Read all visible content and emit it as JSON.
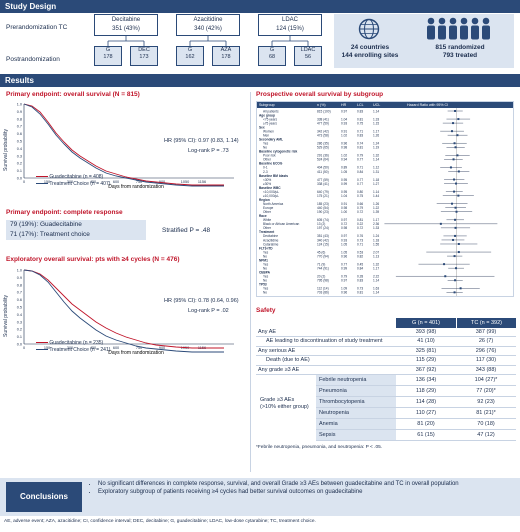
{
  "study_design": {
    "header": "Study Design",
    "prerand_label": "Prerandomization TC",
    "postrand_label": "Postrandomization",
    "arms": [
      {
        "name": "Decitabine",
        "n": "351 (43%)",
        "g": "G",
        "g_n": "178",
        "tc": "DEC",
        "tc_n": "173"
      },
      {
        "name": "Azacitidine",
        "n": "340 (42%)",
        "g": "G",
        "g_n": "162",
        "tc": "AZA",
        "tc_n": "178"
      },
      {
        "name": "LDAC",
        "n": "124 (15%)",
        "g": "G",
        "g_n": "68",
        "tc": "LDAC",
        "tc_n": "56"
      }
    ],
    "sites_line1": "24 countries",
    "sites_line2": "144 enrolling sites",
    "rand_line1": "815 randomized",
    "rand_line2": "793 treated",
    "icons": [
      "globe-icon",
      "people-group-icon"
    ]
  },
  "results": {
    "header": "Results",
    "os_title": "Primary endpoint: overall survival (N = 815)",
    "os_hr": "HR (95% CI): 0.97 (0.83, 1.14)",
    "os_p": "Log-rank P = .73",
    "os_legend": [
      "Guadecitabine (n = 408)",
      "Treatment Choice (n = 407)"
    ],
    "km_ylabel": "Survival probability",
    "km_xlabel": "Days from randomization",
    "km_xticks": [
      "0",
      "150",
      "300",
      "450",
      "600",
      "750",
      "900",
      "1050",
      "1156"
    ],
    "km_yticks": [
      "0.0",
      "0.1",
      "0.2",
      "0.3",
      "0.4",
      "0.5",
      "0.6",
      "0.7",
      "0.8",
      "0.9",
      "1.0"
    ],
    "cr_title": "Primary endpoint: complete response",
    "cr_rows": [
      "79 (19%): Guadecitabine",
      "71 (17%): Treatment choice"
    ],
    "cr_stat": "Stratified P = .48",
    "exp_title": "Exploratory overall survival: pts with ≥4 cycles (N = 476)",
    "exp_hr": "HR (95% CI): 0.78 (0.64, 0.96)",
    "exp_p": "Log-rank P = .02",
    "exp_legend": [
      "Guadecitabine (n = 235)",
      "Treatment Choice (n = 241)"
    ],
    "forest_title": "Prospective overall survival by subgroup",
    "forest_headers": [
      "Subgroup",
      "n (%)",
      "HR",
      "LCL",
      "UCL",
      "Hazard Ratio with 95% CI"
    ],
    "forest_rows": [
      [
        "All patients",
        "815 (100)",
        "0.97",
        "0.83",
        "1.14"
      ],
      [
        "Age group",
        "",
        "",
        "",
        ""
      ],
      [
        "<75 years",
        "338 (41)",
        "1.04",
        "0.81",
        "1.33"
      ],
      [
        "≥75 years",
        "477 (59)",
        "0.93",
        "0.75",
        "1.15"
      ],
      [
        "Sex",
        "",
        "",
        "",
        ""
      ],
      [
        "Women",
        "342 (42)",
        "0.91",
        "0.71",
        "1.17"
      ],
      [
        "Men",
        "473 (58)",
        "1.02",
        "0.83",
        "1.26"
      ],
      [
        "Secondary AML",
        "",
        "",
        "",
        ""
      ],
      [
        "Yes",
        "286 (35)",
        "0.96",
        "0.74",
        "1.24"
      ],
      [
        "No",
        "529 (65)",
        "0.98",
        "0.81",
        "1.19"
      ],
      [
        "Baseline cytogenetic risk",
        "",
        "",
        "",
        ""
      ],
      [
        "Poor risk",
        "291 (36)",
        "1.02",
        "0.79",
        "1.32"
      ],
      [
        "Other",
        "524 (64)",
        "0.94",
        "0.77",
        "1.14"
      ],
      [
        "Baseline ECOG",
        "",
        "",
        "",
        ""
      ],
      [
        "0-1",
        "404 (50)",
        "0.89",
        "0.71",
        "1.12"
      ],
      [
        "2-3",
        "411 (50)",
        "1.05",
        "0.84",
        "1.31"
      ],
      [
        "Baseline BM blasts",
        "",
        "",
        "",
        ""
      ],
      [
        "<30%",
        "477 (59)",
        "0.95",
        "0.77",
        "1.18"
      ],
      [
        "≥30%",
        "338 (41)",
        "0.99",
        "0.77",
        "1.27"
      ],
      [
        "Baseline WBC",
        "",
        "",
        "",
        ""
      ],
      [
        "<10,000/µL",
        "640 (79)",
        "0.95",
        "0.80",
        "1.14"
      ],
      [
        "≥10,000/µL",
        "175 (21)",
        "1.04",
        "0.75",
        "1.44"
      ],
      [
        "Region",
        "",
        "",
        "",
        ""
      ],
      [
        "North America",
        "185 (23)",
        "0.91",
        "0.66",
        "1.26"
      ],
      [
        "Europe",
        "440 (54)",
        "0.98",
        "0.79",
        "1.22"
      ],
      [
        "Other",
        "190 (23)",
        "1.00",
        "0.72",
        "1.39"
      ],
      [
        "Race",
        "",
        "",
        "",
        ""
      ],
      [
        "White",
        "605 (74)",
        "0.97",
        "0.81",
        "1.17"
      ],
      [
        "Black or African American",
        "13 (2)",
        "0.72",
        "0.22",
        "2.36"
      ],
      [
        "Other",
        "197 (24)",
        "0.98",
        "0.72",
        "1.33"
      ],
      [
        "Treatment",
        "",
        "",
        "",
        ""
      ],
      [
        "Decitabine",
        "351 (43)",
        "0.97",
        "0.76",
        "1.24"
      ],
      [
        "Azacitidine",
        "340 (42)",
        "0.93",
        "0.73",
        "1.18"
      ],
      [
        "Cytarabine",
        "124 (15)",
        "1.05",
        "0.71",
        "1.55"
      ],
      [
        "FLT3-ITD",
        "",
        "",
        "",
        ""
      ],
      [
        "Yes",
        "45 (6)",
        "1.05",
        "0.53",
        "2.07"
      ],
      [
        "No",
        "770 (94)",
        "0.96",
        "0.82",
        "1.13"
      ],
      [
        "NPM1",
        "",
        "",
        "",
        ""
      ],
      [
        "Yes",
        "71 (9)",
        "0.77",
        "0.45",
        "1.32"
      ],
      [
        "No",
        "744 (91)",
        "0.99",
        "0.84",
        "1.17"
      ],
      [
        "CEBPA",
        "",
        "",
        "",
        ""
      ],
      [
        "Yes",
        "20 (2)",
        "0.79",
        "0.28",
        "2.22"
      ],
      [
        "No",
        "795 (98)",
        "0.97",
        "0.83",
        "1.14"
      ],
      [
        "TP53",
        "",
        "",
        "",
        ""
      ],
      [
        "Yes",
        "112 (14)",
        "1.09",
        "0.73",
        "1.63"
      ],
      [
        "No",
        "703 (86)",
        "0.96",
        "0.81",
        "1.14"
      ]
    ],
    "safety_title": "Safety",
    "safety_cols": [
      "",
      "G (n = 401)",
      "TC (n = 392)"
    ],
    "safety_rows": [
      {
        "label": "Any AE",
        "g": "393 (98)",
        "tc": "387 (99)"
      },
      {
        "label": "AE leading to discontinuation of study treatment",
        "g": "41 (10)",
        "tc": "26 (7)"
      },
      {
        "label": "Any serious AE",
        "g": "325 (81)",
        "tc": "296 (76)"
      },
      {
        "label": "Death (due to AE)",
        "g": "115 (29)",
        "tc": "117 (30)"
      },
      {
        "label": "Any grade ≥3 AE",
        "g": "367 (92)",
        "tc": "343 (88)"
      }
    ],
    "grade3_label_1": "Grade ≥3 AEs",
    "grade3_label_2": "(>10% either group)",
    "grade3_rows": [
      {
        "label": "Febrile neutropenia",
        "g": "136 (34)",
        "tc": "104 (27)*"
      },
      {
        "label": "Pneumonia",
        "g": "118 (29)",
        "tc": "77 (20)*"
      },
      {
        "label": "Thrombocytopenia",
        "g": "114 (28)",
        "tc": "92 (23)"
      },
      {
        "label": "Neutropenia",
        "g": "110 (27)",
        "tc": "81 (21)*"
      },
      {
        "label": "Anemia",
        "g": "81 (20)",
        "tc": "70 (18)"
      },
      {
        "label": "Sepsis",
        "g": "61 (15)",
        "tc": "47 (12)"
      }
    ],
    "safety_footnote": "*Febrile neutropenia, pneumonia, and neutropenia: P < .05."
  },
  "conclusions": {
    "label": "Conclusions",
    "bullets": [
      "No significant differences in complete response, survival, and overall Grade ≥3 AEs between guadecitabine and TC in overall population",
      "Exploratory subgroup of patients receiving ≥4 cycles had better survival outcomes on guadecitabine"
    ]
  },
  "footer": "AE, adverse event; AZA, azacitidine; CI, confidence interval; DEC, decitabine; G, guadecitabine; LDAC, low-dose cytarabine; TC, treatment choice.",
  "colors": {
    "navy": "#2b4a78",
    "red": "#c0152a",
    "light": "#dbe4f0"
  }
}
